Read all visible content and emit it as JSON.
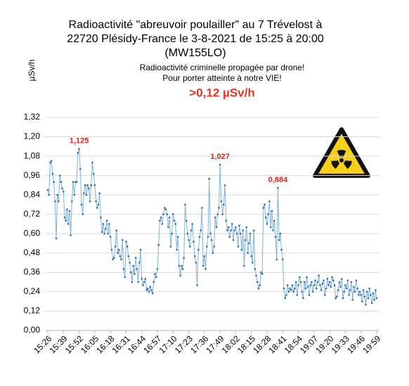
{
  "chart_data": {
    "type": "line",
    "title_lines": [
      "Radioactivité \"abreuvoir poulailler\" au 7 Trévelost à",
      "22720 Plésidy-France le 3-8-2021 de 15:25 à 20:00",
      "(MW155LO)"
    ],
    "y_label": "µSv/h",
    "annotations": [
      "Radioactivité criminelle propagée par drone!",
      "Pour porter atteinte à notre VIE!"
    ],
    "highlight": ">0,12 µSv/h",
    "color": "#2f6fa8",
    "grid": true,
    "ylim": [
      0,
      1.32
    ],
    "yticks": [
      {
        "value": 0,
        "label": "0,00"
      },
      {
        "value": 0.12,
        "label": "0,12"
      },
      {
        "value": 0.24,
        "label": "0,24"
      },
      {
        "value": 0.36,
        "label": "0,36"
      },
      {
        "value": 0.48,
        "label": "0,48"
      },
      {
        "value": 0.6,
        "label": "0,60"
      },
      {
        "value": 0.72,
        "label": "0,72"
      },
      {
        "value": 0.84,
        "label": "0,84"
      },
      {
        "value": 0.96,
        "label": "0,96"
      },
      {
        "value": 1.08,
        "label": "1,08"
      },
      {
        "value": 1.2,
        "label": "1,20"
      },
      {
        "value": 1.32,
        "label": "1,32"
      }
    ],
    "categories": [
      "15:26",
      null,
      null,
      null,
      null,
      null,
      null,
      null,
      null,
      null,
      null,
      null,
      null,
      "15:39",
      null,
      null,
      null,
      null,
      null,
      null,
      null,
      null,
      null,
      null,
      null,
      null,
      "15:52",
      null,
      null,
      null,
      null,
      null,
      null,
      null,
      null,
      null,
      null,
      null,
      null,
      "16:05",
      null,
      null,
      null,
      null,
      null,
      null,
      null,
      null,
      null,
      null,
      null,
      null,
      "16:18",
      null,
      null,
      null,
      null,
      null,
      null,
      null,
      null,
      null,
      null,
      null,
      null,
      "16:31",
      null,
      null,
      null,
      null,
      null,
      null,
      null,
      null,
      null,
      null,
      null,
      null,
      "16:44",
      null,
      null,
      null,
      null,
      null,
      null,
      null,
      null,
      null,
      null,
      null,
      null,
      "16:57",
      null,
      null,
      null,
      null,
      null,
      null,
      null,
      null,
      null,
      null,
      null,
      null,
      "17:10",
      null,
      null,
      null,
      null,
      null,
      null,
      null,
      null,
      null,
      null,
      null,
      null,
      "17:23",
      null,
      null,
      null,
      null,
      null,
      null,
      null,
      null,
      null,
      null,
      null,
      null,
      "17:36",
      null,
      null,
      null,
      null,
      null,
      null,
      null,
      null,
      null,
      null,
      null,
      null,
      "17:49",
      null,
      null,
      null,
      null,
      null,
      null,
      null,
      null,
      null,
      null,
      null,
      null,
      "18:02",
      null,
      null,
      null,
      null,
      null,
      null,
      null,
      null,
      null,
      null,
      null,
      null,
      "18:15",
      null,
      null,
      null,
      null,
      null,
      null,
      null,
      null,
      null,
      null,
      null,
      null,
      "18:28",
      null,
      null,
      null,
      null,
      null,
      null,
      null,
      null,
      null,
      null,
      null,
      null,
      "18:41",
      null,
      null,
      null,
      null,
      null,
      null,
      null,
      null,
      null,
      null,
      null,
      null,
      "18:54",
      null,
      null,
      null,
      null,
      null,
      null,
      null,
      null,
      null,
      null,
      null,
      null,
      "19:07",
      null,
      null,
      null,
      null,
      null,
      null,
      null,
      null,
      null,
      null,
      null,
      null,
      "19:20",
      null,
      null,
      null,
      null,
      null,
      null,
      null,
      null,
      null,
      null,
      null,
      null,
      "19:33",
      null,
      null,
      null,
      null,
      null,
      null,
      null,
      null,
      null,
      null,
      null,
      null,
      "19:46",
      null,
      null,
      null,
      null,
      null,
      null,
      null,
      null,
      null,
      null,
      null,
      null,
      "19:59"
    ],
    "values": [
      0.87,
      0.84,
      1.04,
      1.05,
      0.97,
      0.92,
      0.8,
      0.57,
      0.84,
      0.8,
      0.96,
      0.92,
      0.88,
      0.86,
      0.7,
      0.68,
      0.75,
      0.66,
      0.74,
      0.59,
      0.8,
      0.92,
      0.84,
      0.92,
      0.92,
      1.1,
      1.125,
      1.0,
      0.78,
      0.72,
      0.85,
      0.9,
      0.84,
      0.9,
      0.88,
      0.8,
      0.9,
      1.04,
      0.97,
      0.9,
      0.8,
      0.76,
      0.78,
      0.85,
      0.7,
      0.61,
      0.66,
      0.6,
      0.63,
      0.68,
      0.6,
      0.66,
      0.58,
      0.5,
      0.44,
      0.45,
      0.52,
      0.62,
      0.48,
      0.5,
      0.46,
      0.44,
      0.56,
      0.38,
      0.33,
      0.55,
      0.52,
      0.46,
      0.42,
      0.36,
      0.3,
      0.4,
      0.35,
      0.45,
      0.38,
      0.3,
      0.42,
      0.5,
      0.32,
      0.28,
      0.3,
      0.32,
      0.25,
      0.26,
      0.24,
      0.27,
      0.25,
      0.23,
      0.3,
      0.35,
      0.33,
      0.38,
      0.53,
      0.68,
      0.7,
      0.66,
      0.72,
      0.76,
      0.75,
      0.72,
      0.64,
      0.7,
      0.52,
      0.6,
      0.72,
      0.68,
      0.66,
      0.5,
      0.58,
      0.4,
      0.34,
      0.4,
      0.38,
      0.45,
      0.78,
      0.68,
      0.6,
      0.56,
      0.52,
      0.62,
      0.66,
      0.55,
      0.46,
      0.42,
      0.28,
      0.5,
      0.58,
      0.62,
      0.76,
      0.4,
      0.46,
      0.38,
      0.52,
      0.58,
      0.94,
      0.6,
      0.56,
      0.48,
      0.52,
      0.7,
      0.64,
      0.72,
      0.76,
      1.027,
      0.8,
      0.72,
      0.78,
      0.9,
      0.68,
      0.62,
      0.64,
      0.58,
      0.62,
      0.66,
      0.56,
      0.62,
      0.64,
      0.6,
      0.52,
      0.65,
      0.6,
      0.5,
      0.62,
      0.4,
      0.56,
      0.64,
      0.48,
      0.54,
      0.6,
      0.46,
      0.42,
      0.62,
      0.38,
      0.34,
      0.3,
      0.26,
      0.28,
      0.36,
      0.35,
      0.76,
      0.78,
      0.7,
      0.66,
      0.72,
      0.8,
      0.64,
      0.74,
      0.62,
      0.68,
      0.58,
      0.44,
      0.884,
      0.56,
      0.6,
      0.5,
      0.44,
      0.26,
      0.2,
      0.22,
      0.28,
      0.24,
      0.26,
      0.25,
      0.28,
      0.24,
      0.26,
      0.3,
      0.22,
      0.28,
      0.33,
      0.3,
      0.24,
      0.2,
      0.3,
      0.26,
      0.33,
      0.27,
      0.22,
      0.28,
      0.3,
      0.24,
      0.28,
      0.31,
      0.26,
      0.3,
      0.34,
      0.28,
      0.25,
      0.29,
      0.31,
      0.22,
      0.26,
      0.32,
      0.28,
      0.3,
      0.27,
      0.33,
      0.31,
      0.28,
      0.2,
      0.21,
      0.25,
      0.3,
      0.27,
      0.32,
      0.2,
      0.24,
      0.28,
      0.26,
      0.31,
      0.22,
      0.25,
      0.3,
      0.19,
      0.27,
      0.24,
      0.31,
      0.26,
      0.22,
      0.24,
      0.22,
      0.18,
      0.25,
      0.21,
      0.16,
      0.24,
      0.2,
      0.26,
      0.22,
      0.17,
      0.23,
      0.19,
      0.25,
      0.2
    ],
    "value_labels": [
      null,
      null,
      null,
      null,
      null,
      null,
      null,
      null,
      null,
      null,
      null,
      null,
      null,
      null,
      null,
      null,
      null,
      null,
      null,
      null,
      null,
      null,
      null,
      null,
      null,
      null,
      "1,125",
      null,
      null,
      null,
      null,
      null,
      null,
      null,
      null,
      null,
      null,
      null,
      null,
      null,
      null,
      null,
      null,
      null,
      null,
      null,
      null,
      null,
      null,
      null,
      null,
      null,
      null,
      null,
      null,
      null,
      null,
      null,
      null,
      null,
      null,
      null,
      null,
      null,
      null,
      null,
      null,
      null,
      null,
      null,
      null,
      null,
      null,
      null,
      null,
      null,
      null,
      null,
      null,
      null,
      null,
      null,
      null,
      null,
      null,
      null,
      null,
      null,
      null,
      null,
      null,
      null,
      null,
      null,
      null,
      null,
      null,
      null,
      null,
      null,
      null,
      null,
      null,
      null,
      null,
      null,
      null,
      null,
      null,
      null,
      null,
      null,
      null,
      null,
      null,
      null,
      null,
      null,
      null,
      null,
      null,
      null,
      null,
      null,
      null,
      null,
      null,
      null,
      null,
      null,
      null,
      null,
      null,
      null,
      null,
      null,
      null,
      null,
      null,
      null,
      null,
      null,
      null,
      "1,027",
      null,
      null,
      null,
      null,
      null,
      null,
      null,
      null,
      null,
      null,
      null,
      null,
      null,
      null,
      null,
      null,
      null,
      null,
      null,
      null,
      null,
      null,
      null,
      null,
      null,
      null,
      null,
      null,
      null,
      null,
      null,
      null,
      null,
      null,
      null,
      null,
      null,
      null,
      null,
      null,
      null,
      null,
      null,
      null,
      null,
      null,
      null,
      "0,884",
      null,
      null,
      null,
      null,
      null,
      null,
      null,
      null,
      null,
      null,
      null,
      null,
      null,
      null,
      null,
      null,
      null,
      null,
      null,
      null,
      null,
      null,
      null,
      null,
      null,
      null,
      null,
      null,
      null,
      null,
      null,
      null,
      null,
      null,
      null,
      null,
      null,
      null,
      null,
      null,
      null,
      null,
      null,
      null,
      null,
      null,
      null,
      null,
      null,
      null,
      null,
      null,
      null,
      null,
      null,
      null,
      null,
      null,
      null,
      null,
      null,
      null,
      null,
      null,
      null,
      null,
      null,
      null,
      null,
      null,
      null,
      null,
      null,
      null,
      null,
      null,
      null,
      null,
      null,
      null,
      null,
      null
    ]
  }
}
